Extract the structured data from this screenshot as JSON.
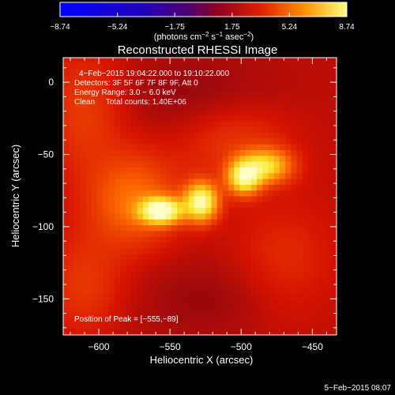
{
  "chart_data": {
    "type": "heatmap",
    "title": "Reconstructed RHESSI Image",
    "xlabel": "Heliocentric X (arcsec)",
    "ylabel": "Heliocentric Y (arcsec)",
    "xlim": [
      -625,
      -433
    ],
    "ylim": [
      -175,
      17
    ],
    "x_ticks": [
      -600,
      -550,
      -500,
      -450
    ],
    "y_ticks": [
      0,
      -50,
      -100,
      -150
    ],
    "x_tick_labels": [
      "−600",
      "−550",
      "−500",
      "−450"
    ],
    "y_tick_labels": [
      "0",
      "−50",
      "−100",
      "−150"
    ],
    "colorbar": {
      "min": -8.74,
      "max": 8.74,
      "tick_values": [
        -8.74,
        -5.24,
        -1.75,
        1.75,
        5.24,
        8.74
      ],
      "tick_labels": [
        "−8.74",
        "−5.24",
        "−1.75",
        "1.75",
        "5.24",
        "8.74"
      ],
      "unit_label_main": "(photons cm",
      "unit_exp1": "−2",
      "unit_label_mid": " s",
      "unit_exp2": "−1",
      "unit_label_end": " asec",
      "unit_exp3": "−2",
      "unit_label_close": ")"
    },
    "annotations": [
      "4−Feb−2015 19:04:22.000 to 19:10:22.000",
      "Detectors: 3F 5F 6F 7F 8F 9F, Att 0",
      "Energy Range: 3.0 − 6.0 keV",
      "Clean     Total counts: 1.40E+06"
    ],
    "peak_label": "Position of Peak = [−555,−89]",
    "background_level": 1.6,
    "sources": [
      {
        "x": -556,
        "y": -89,
        "sx": 10,
        "sy": 6,
        "amp": 7.2
      },
      {
        "x": -528,
        "y": -83,
        "sx": 8,
        "sy": 9,
        "amp": 6.6
      },
      {
        "x": -498,
        "y": -66,
        "sx": 8,
        "sy": 8,
        "amp": 5.8
      },
      {
        "x": -482,
        "y": -58,
        "sx": 12,
        "sy": 8,
        "amp": 4.4
      },
      {
        "x": -575,
        "y": -82,
        "sx": 22,
        "sy": 22,
        "amp": 2.4
      },
      {
        "x": -505,
        "y": -40,
        "sx": 28,
        "sy": 20,
        "amp": 1.2
      },
      {
        "x": -470,
        "y": -125,
        "sx": 26,
        "sy": 30,
        "amp": 0.9
      },
      {
        "x": -520,
        "y": -150,
        "sx": 40,
        "sy": 20,
        "amp": -0.6
      },
      {
        "x": -530,
        "y": -10,
        "sx": 40,
        "sy": 20,
        "amp": -0.7
      },
      {
        "x": -610,
        "y": -20,
        "sx": 20,
        "sy": 30,
        "amp": 1.3
      },
      {
        "x": -610,
        "y": -140,
        "sx": 20,
        "sy": 25,
        "amp": 1.2
      }
    ]
  },
  "footer_date": "5−Feb−2015 08:07"
}
